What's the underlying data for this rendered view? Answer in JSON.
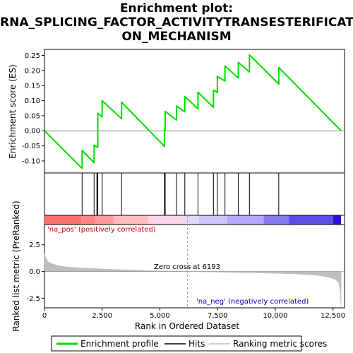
{
  "title": {
    "line1": "Enrichment plot:",
    "line2": "RNA_SPLICING_FACTOR_ACTIVITYTRANSESTERIFICATI",
    "line3": "ON_MECHANISM"
  },
  "chart_data": {
    "type": "line",
    "xlabel": "Rank in Ordered Dataset",
    "ylabel_top": "Enrichment score (ES)",
    "ylabel_bottom": "Ranked list metric (PreRanked)",
    "x_ticks": [
      "0",
      "2,500",
      "5,000",
      "7,500",
      "10,000",
      "12,500"
    ],
    "x_tick_values": [
      0,
      2500,
      5000,
      7500,
      10000,
      12500
    ],
    "xlim": [
      0,
      13000
    ],
    "es_ylim": [
      -0.14,
      0.27
    ],
    "es_ticks": [
      "0.25",
      "0.20",
      "0.15",
      "0.10",
      "0.05",
      "0.00",
      "-0.05",
      "-0.10"
    ],
    "es_tick_values": [
      0.25,
      0.2,
      0.15,
      0.1,
      0.05,
      0.0,
      -0.05,
      -0.1
    ],
    "metric_ylim": [
      -3.4,
      4.4
    ],
    "metric_ticks": [
      "2.5",
      "0.0",
      "-2.5"
    ],
    "metric_tick_values": [
      2.5,
      0.0,
      -2.5
    ],
    "hits": [
      1630,
      2150,
      2270,
      2310,
      2500,
      3340,
      5200,
      5230,
      5720,
      6080,
      6650,
      7320,
      7490,
      7820,
      8400,
      8880,
      10150
    ],
    "es_points": [
      [
        0,
        0.0
      ],
      [
        1629,
        -0.125
      ],
      [
        1630,
        -0.065
      ],
      [
        2149,
        -0.106
      ],
      [
        2150,
        -0.048
      ],
      [
        2269,
        -0.054
      ],
      [
        2270,
        -0.052
      ],
      [
        2309,
        -0.054
      ],
      [
        2310,
        0.058
      ],
      [
        2499,
        0.046
      ],
      [
        2500,
        0.1
      ],
      [
        3339,
        0.04
      ],
      [
        3340,
        0.095
      ],
      [
        5199,
        -0.052
      ],
      [
        5200,
        0.005
      ],
      [
        5229,
        0.003
      ],
      [
        5230,
        0.064
      ],
      [
        5719,
        0.036
      ],
      [
        5720,
        0.082
      ],
      [
        6079,
        0.063
      ],
      [
        6080,
        0.114
      ],
      [
        6649,
        0.073
      ],
      [
        6650,
        0.128
      ],
      [
        7319,
        0.078
      ],
      [
        7320,
        0.135
      ],
      [
        7489,
        0.127
      ],
      [
        7490,
        0.181
      ],
      [
        7819,
        0.165
      ],
      [
        7820,
        0.215
      ],
      [
        8399,
        0.175
      ],
      [
        8400,
        0.227
      ],
      [
        8879,
        0.195
      ],
      [
        8880,
        0.252
      ],
      [
        10149,
        0.155
      ],
      [
        10150,
        0.21
      ],
      [
        12850,
        0.0
      ]
    ],
    "metric_profile": [
      [
        0,
        1.7
      ],
      [
        30,
        1.4
      ],
      [
        80,
        1.15
      ],
      [
        150,
        0.95
      ],
      [
        300,
        0.75
      ],
      [
        600,
        0.55
      ],
      [
        1000,
        0.42
      ],
      [
        1600,
        0.33
      ],
      [
        2500,
        0.24
      ],
      [
        3500,
        0.15
      ],
      [
        4500,
        0.08
      ],
      [
        5500,
        0.03
      ],
      [
        6193,
        0.0
      ],
      [
        7000,
        -0.04
      ],
      [
        8000,
        -0.08
      ],
      [
        9000,
        -0.12
      ],
      [
        10000,
        -0.17
      ],
      [
        11000,
        -0.24
      ],
      [
        11800,
        -0.36
      ],
      [
        12300,
        -0.52
      ],
      [
        12600,
        -0.75
      ],
      [
        12750,
        -1.05
      ],
      [
        12800,
        -1.6
      ],
      [
        12830,
        -2.5
      ],
      [
        12850,
        -3.2
      ]
    ],
    "band_colors": [
      "#ff6f6f",
      "#ff8585",
      "#ff9b9b",
      "#ffbcbc",
      "#ffd4e6",
      "#e0d8ff",
      "#cfc3ff",
      "#b7a8ff",
      "#8a7af0",
      "#5f4be6",
      "#2a14c8"
    ],
    "band_edges": [
      0,
      1600,
      2200,
      3000,
      4500,
      6100,
      6700,
      7900,
      9500,
      10600,
      12500,
      12850
    ],
    "zero_cross_label": "Zero cross at 6193",
    "zero_cross": 6193,
    "pos_label": "'na_pos' (positively correlated)",
    "neg_label": "'na_neg' (negatively correlated)",
    "colors": {
      "enrichment": "#00dd00",
      "hits": "#000000",
      "metric": "#bebebe",
      "pos_text": "#cc0000",
      "neg_text": "#0000cc"
    },
    "legend": {
      "enrichment": "Enrichment profile",
      "hits": "Hits",
      "metric": "Ranking metric scores"
    }
  }
}
